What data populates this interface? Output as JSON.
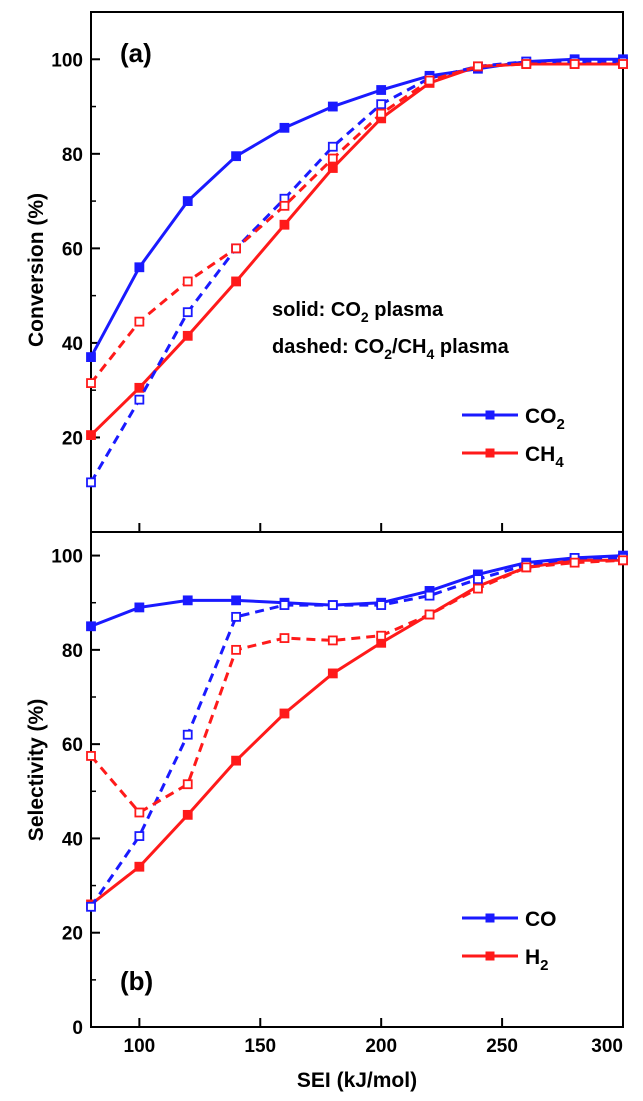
{
  "chart_data": [
    {
      "type": "line",
      "panel_label": "(a)",
      "xlabel": "",
      "ylabel": "Conversion (%)",
      "xlim": [
        80,
        300
      ],
      "ylim": [
        0,
        110
      ],
      "yticks": [
        20,
        40,
        60,
        80,
        100
      ],
      "annotations": {
        "solid": {
          "prefix": "solid: CO",
          "sub": "2",
          "suffix": " plasma"
        },
        "dashed": {
          "prefix": "dashed: CO",
          "sub1": "2",
          "mid": "/CH",
          "sub2": "4",
          "suffix": " plasma"
        }
      },
      "legend": [
        {
          "main": "CO",
          "sub": "2",
          "color": "#1a1aff"
        },
        {
          "main": "CH",
          "sub": "4",
          "color": "#ff1a1a"
        }
      ],
      "legend_position": "bottom-right",
      "series": [
        {
          "name": "CO2",
          "style": "solid",
          "color": "#1a1aff",
          "x": [
            80,
            100,
            120,
            140,
            160,
            180,
            200,
            220,
            240,
            260,
            280,
            300
          ],
          "y": [
            37,
            56,
            70,
            79.5,
            85.5,
            90,
            93.5,
            96.5,
            98,
            99.5,
            100,
            100
          ]
        },
        {
          "name": "CH4",
          "style": "solid",
          "color": "#ff1a1a",
          "x": [
            80,
            100,
            120,
            140,
            160,
            180,
            200,
            220,
            240,
            260,
            280,
            300
          ],
          "y": [
            20.5,
            30.5,
            41.5,
            53,
            65,
            77,
            87.5,
            95,
            98.5,
            99,
            99,
            99
          ]
        },
        {
          "name": "CO2",
          "style": "dashed",
          "color": "#1a1aff",
          "x": [
            80,
            100,
            120,
            140,
            160,
            180,
            200,
            220,
            240,
            260,
            280,
            300
          ],
          "y": [
            10.5,
            28,
            46.5,
            60,
            70.5,
            81.5,
            90.5,
            96,
            98.5,
            99.5,
            99.5,
            99.5
          ]
        },
        {
          "name": "CH4",
          "style": "dashed",
          "color": "#ff1a1a",
          "x": [
            80,
            100,
            120,
            140,
            160,
            180,
            200,
            220,
            240,
            260,
            280,
            300
          ],
          "y": [
            31.5,
            44.5,
            53,
            60,
            69,
            79,
            88.5,
            95.5,
            98.5,
            99,
            99,
            99
          ]
        }
      ]
    },
    {
      "type": "line",
      "panel_label": "(b)",
      "xlabel": "SEI (kJ/mol)",
      "ylabel": "Selectivity (%)",
      "xlim": [
        80,
        300
      ],
      "ylim": [
        0,
        105
      ],
      "xticks": [
        100,
        150,
        200,
        250,
        300
      ],
      "yticks": [
        0,
        20,
        40,
        60,
        80,
        100
      ],
      "legend": [
        {
          "main": "CO",
          "sub": "",
          "color": "#1a1aff"
        },
        {
          "main": "H",
          "sub": "2",
          "color": "#ff1a1a"
        }
      ],
      "legend_position": "bottom-right",
      "series": [
        {
          "name": "CO",
          "style": "solid",
          "color": "#1a1aff",
          "x": [
            80,
            100,
            120,
            140,
            160,
            180,
            200,
            220,
            240,
            260,
            280,
            300
          ],
          "y": [
            85,
            89,
            90.5,
            90.5,
            90,
            89.5,
            90,
            92.5,
            96,
            98.5,
            99.5,
            100
          ]
        },
        {
          "name": "H2",
          "style": "solid",
          "color": "#ff1a1a",
          "x": [
            80,
            100,
            120,
            140,
            160,
            180,
            200,
            220,
            240,
            260,
            280,
            300
          ],
          "y": [
            26,
            34,
            45,
            56.5,
            66.5,
            75,
            81.5,
            87.5,
            93.5,
            97.5,
            99,
            99
          ]
        },
        {
          "name": "CO",
          "style": "dashed",
          "color": "#1a1aff",
          "x": [
            80,
            100,
            120,
            140,
            160,
            180,
            200,
            220,
            240,
            260,
            280,
            300
          ],
          "y": [
            25.5,
            40.5,
            62,
            87,
            89.5,
            89.5,
            89.5,
            91.5,
            95,
            98,
            99.5,
            99.5
          ]
        },
        {
          "name": "H2",
          "style": "dashed",
          "color": "#ff1a1a",
          "x": [
            80,
            100,
            120,
            140,
            160,
            180,
            200,
            220,
            240,
            260,
            280,
            300
          ],
          "y": [
            57.5,
            45.5,
            51.5,
            80,
            82.5,
            82,
            83,
            87.5,
            93,
            97.5,
            98.5,
            99
          ]
        }
      ]
    }
  ]
}
